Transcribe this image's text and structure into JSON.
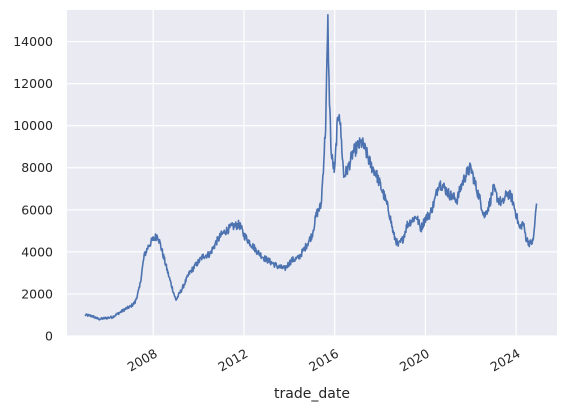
{
  "chart_data": {
    "type": "line",
    "title": "",
    "xlabel": "trade_date",
    "ylabel": "",
    "grid": true,
    "legend": "none",
    "x_range": [
      2004.2,
      2025.8
    ],
    "ylim": [
      0,
      15500
    ],
    "x_ticks": [
      {
        "value": 2008,
        "label": "2008"
      },
      {
        "value": 2012,
        "label": "2012"
      },
      {
        "value": 2016,
        "label": "2016"
      },
      {
        "value": 2020,
        "label": "2020"
      },
      {
        "value": 2024,
        "label": "2024"
      }
    ],
    "y_ticks": [
      {
        "value": 0,
        "label": "0"
      },
      {
        "value": 2000,
        "label": "2000"
      },
      {
        "value": 4000,
        "label": "4000"
      },
      {
        "value": 6000,
        "label": "6000"
      },
      {
        "value": 8000,
        "label": "8000"
      },
      {
        "value": 10000,
        "label": "10000"
      },
      {
        "value": 12000,
        "label": "12000"
      },
      {
        "value": 14000,
        "label": "14000"
      }
    ],
    "colors": {
      "background": "#eaeaf2",
      "grid": "#ffffff",
      "line": "#4c72b0"
    },
    "series": [
      {
        "x": [
          2005.0,
          2005.3,
          2005.6,
          2005.9,
          2006.2,
          2006.5,
          2006.8,
          2007.0,
          2007.2,
          2007.4,
          2007.6,
          2007.8,
          2008.0,
          2008.2,
          2008.4,
          2008.7,
          2009.0,
          2009.3,
          2009.6,
          2009.9,
          2010.2,
          2010.5,
          2010.8,
          2011.0,
          2011.2,
          2011.5,
          2011.8,
          2012.0,
          2012.3,
          2012.6,
          2012.9,
          2013.2,
          2013.5,
          2013.8,
          2014.1,
          2014.4,
          2014.7,
          2015.0,
          2015.2,
          2015.4,
          2015.5,
          2015.6,
          2015.7,
          2015.75,
          2015.85,
          2016.0,
          2016.1,
          2016.2,
          2016.4,
          2016.6,
          2016.8,
          2017.0,
          2017.2,
          2017.4,
          2017.6,
          2017.8,
          2018.0,
          2018.2,
          2018.4,
          2018.6,
          2018.8,
          2019.0,
          2019.2,
          2019.4,
          2019.6,
          2019.8,
          2020.0,
          2020.2,
          2020.4,
          2020.6,
          2020.8,
          2021.0,
          2021.2,
          2021.4,
          2021.6,
          2021.8,
          2022.0,
          2022.2,
          2022.4,
          2022.6,
          2022.8,
          2023.0,
          2023.2,
          2023.4,
          2023.6,
          2023.8,
          2024.0,
          2024.15,
          2024.3,
          2024.45,
          2024.6,
          2024.75,
          2024.9
        ],
        "y": [
          1000,
          950,
          800,
          850,
          900,
          1100,
          1300,
          1400,
          1600,
          2300,
          3800,
          4300,
          4600,
          4800,
          4000,
          2800,
          1700,
          2300,
          3000,
          3400,
          3800,
          3900,
          4500,
          4800,
          5000,
          5200,
          5300,
          4800,
          4400,
          4000,
          3700,
          3500,
          3300,
          3200,
          3600,
          3700,
          4200,
          4800,
          5800,
          6200,
          8000,
          10000,
          14900,
          12000,
          8600,
          7800,
          9800,
          10800,
          7600,
          8000,
          8700,
          9000,
          9200,
          8700,
          8100,
          7800,
          7200,
          6600,
          5900,
          4800,
          4300,
          4600,
          5300,
          5500,
          5700,
          5100,
          5600,
          5800,
          6400,
          7300,
          7100,
          6800,
          6600,
          6500,
          7200,
          7700,
          8000,
          7200,
          6500,
          5700,
          6200,
          7000,
          6500,
          6300,
          6800,
          6600,
          5800,
          5100,
          5400,
          4600,
          4400,
          4500,
          6300
        ]
      }
    ]
  }
}
